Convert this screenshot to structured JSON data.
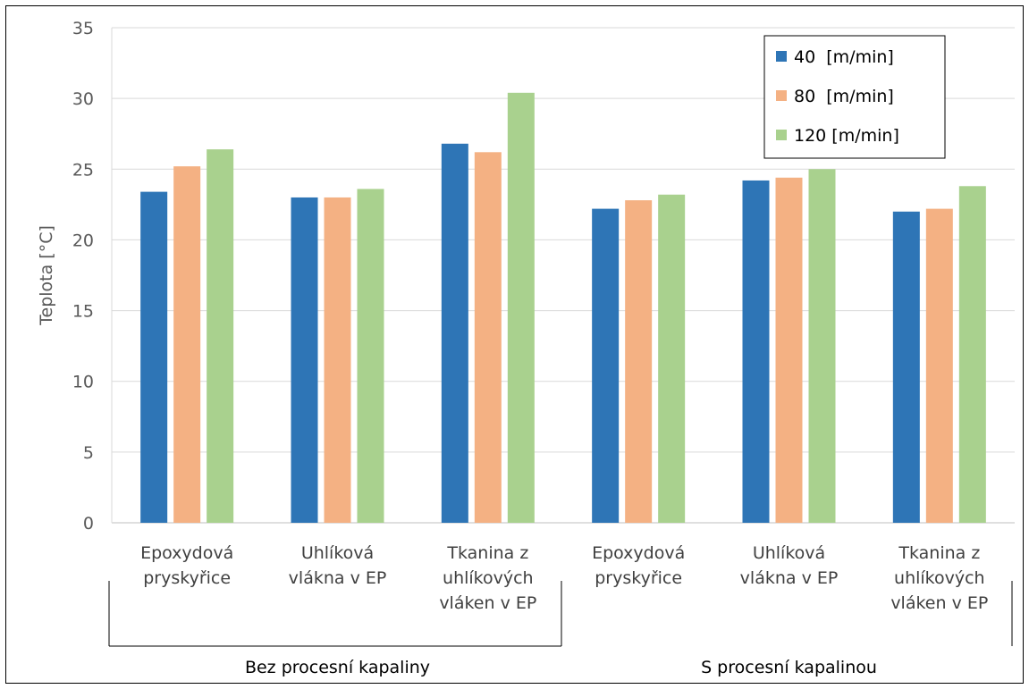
{
  "chart_data": {
    "type": "bar",
    "ylabel": "Teplota [°C]",
    "ylim": [
      0,
      35
    ],
    "yticks": [
      0,
      5,
      10,
      15,
      20,
      25,
      30,
      35
    ],
    "grid": true,
    "legend_position": "top-right",
    "categories": [
      [
        "Epoxydová",
        "pryskyřice"
      ],
      [
        "Uhlíková",
        "vlákna v EP"
      ],
      [
        "Tkanina z",
        "uhlíkových",
        "vláken v EP"
      ],
      [
        "Epoxydová",
        "pryskyřice"
      ],
      [
        "Uhlíková",
        "vlákna v EP"
      ],
      [
        "Tkanina z",
        "uhlíkových",
        "vláken v EP"
      ]
    ],
    "groups": [
      {
        "label": "Bez procesní kapaliny",
        "span": [
          0,
          2
        ]
      },
      {
        "label": "S procesní kapalinou",
        "span": [
          3,
          5
        ]
      }
    ],
    "series": [
      {
        "name": "40  [m/min]",
        "color": "#2e75b6",
        "values": [
          23.4,
          23.0,
          26.8,
          22.2,
          24.2,
          22.0
        ]
      },
      {
        "name": "80  [m/min]",
        "color": "#f4b183",
        "values": [
          25.2,
          23.0,
          26.2,
          22.8,
          24.4,
          22.2
        ]
      },
      {
        "name": "120 [m/min]",
        "color": "#a9d18e",
        "values": [
          26.4,
          23.6,
          30.4,
          23.2,
          25.0,
          23.8
        ]
      }
    ]
  }
}
